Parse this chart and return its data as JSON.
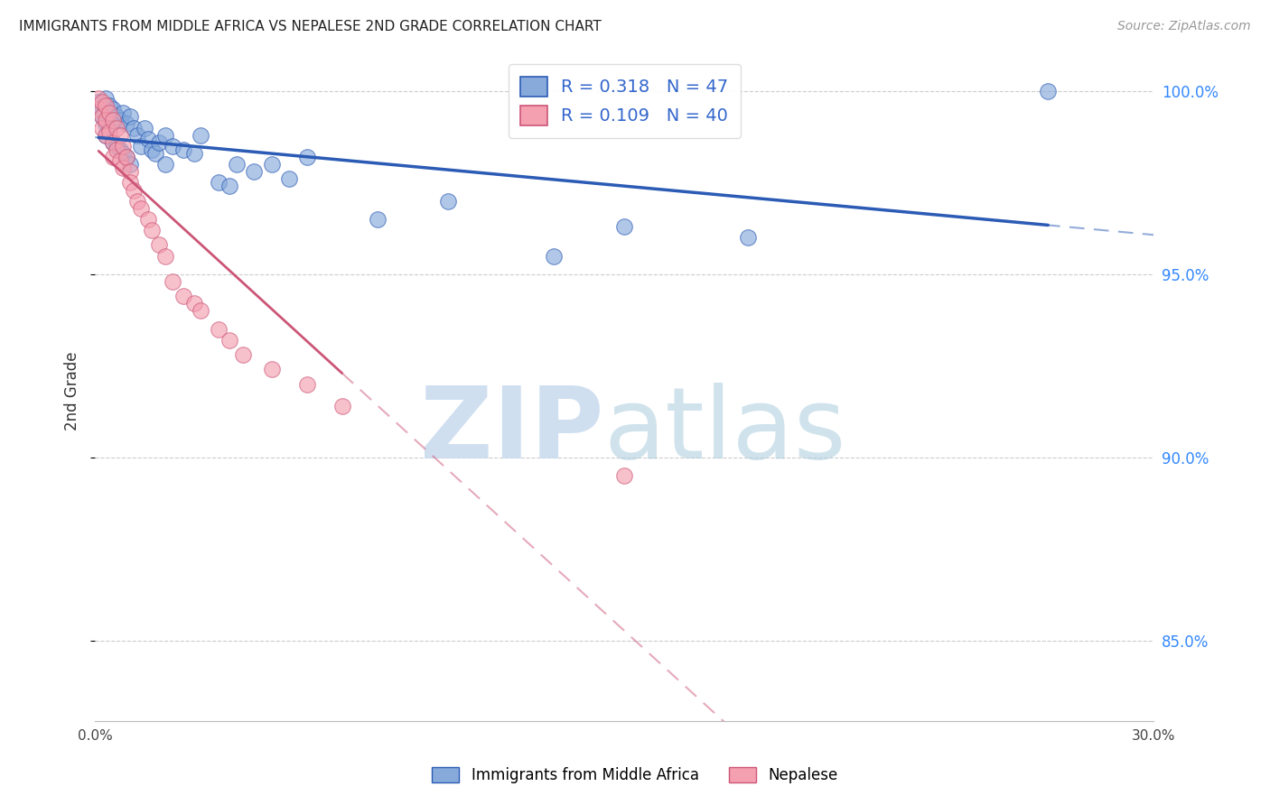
{
  "title": "IMMIGRANTS FROM MIDDLE AFRICA VS NEPALESE 2ND GRADE CORRELATION CHART",
  "source_text": "Source: ZipAtlas.com",
  "ylabel": "2nd Grade",
  "xlim": [
    0.0,
    0.3
  ],
  "ylim": [
    0.828,
    1.008
  ],
  "x_ticks": [
    0.0,
    0.05,
    0.1,
    0.15,
    0.2,
    0.25,
    0.3
  ],
  "x_tick_labels": [
    "0.0%",
    "",
    "",
    "",
    "",
    "",
    "30.0%"
  ],
  "y_ticks": [
    0.85,
    0.9,
    0.95,
    1.0
  ],
  "y_tick_labels": [
    "85.0%",
    "90.0%",
    "95.0%",
    "100.0%"
  ],
  "blue_color": "#87AADB",
  "pink_color": "#F4A0B0",
  "blue_line_color": "#2B5BB5",
  "pink_line_color": "#CC5577",
  "legend_R_blue": "0.318",
  "legend_N_blue": "47",
  "legend_R_pink": "0.109",
  "legend_N_pink": "40",
  "blue_scatter_x": [
    0.001,
    0.002,
    0.002,
    0.003,
    0.003,
    0.003,
    0.004,
    0.004,
    0.005,
    0.005,
    0.006,
    0.006,
    0.007,
    0.007,
    0.008,
    0.008,
    0.009,
    0.009,
    0.01,
    0.01,
    0.011,
    0.012,
    0.013,
    0.014,
    0.015,
    0.016,
    0.017,
    0.018,
    0.02,
    0.02,
    0.022,
    0.025,
    0.028,
    0.03,
    0.035,
    0.038,
    0.04,
    0.045,
    0.05,
    0.055,
    0.06,
    0.08,
    0.1,
    0.13,
    0.15,
    0.185,
    0.27
  ],
  "blue_scatter_y": [
    0.997,
    0.995,
    0.993,
    0.998,
    0.991,
    0.988,
    0.996,
    0.99,
    0.995,
    0.986,
    0.993,
    0.985,
    0.992,
    0.984,
    0.994,
    0.983,
    0.991,
    0.982,
    0.993,
    0.98,
    0.99,
    0.988,
    0.985,
    0.99,
    0.987,
    0.984,
    0.983,
    0.986,
    0.988,
    0.98,
    0.985,
    0.984,
    0.983,
    0.988,
    0.975,
    0.974,
    0.98,
    0.978,
    0.98,
    0.976,
    0.982,
    0.965,
    0.97,
    0.955,
    0.963,
    0.96,
    1.0
  ],
  "pink_scatter_x": [
    0.001,
    0.001,
    0.002,
    0.002,
    0.002,
    0.003,
    0.003,
    0.003,
    0.004,
    0.004,
    0.005,
    0.005,
    0.005,
    0.006,
    0.006,
    0.007,
    0.007,
    0.008,
    0.008,
    0.009,
    0.01,
    0.01,
    0.011,
    0.012,
    0.013,
    0.015,
    0.016,
    0.018,
    0.02,
    0.022,
    0.025,
    0.028,
    0.03,
    0.035,
    0.038,
    0.042,
    0.05,
    0.06,
    0.07,
    0.15
  ],
  "pink_scatter_y": [
    0.998,
    0.995,
    0.997,
    0.993,
    0.99,
    0.996,
    0.992,
    0.988,
    0.994,
    0.989,
    0.992,
    0.986,
    0.982,
    0.99,
    0.984,
    0.988,
    0.981,
    0.985,
    0.979,
    0.982,
    0.978,
    0.975,
    0.973,
    0.97,
    0.968,
    0.965,
    0.962,
    0.958,
    0.955,
    0.948,
    0.944,
    0.942,
    0.94,
    0.935,
    0.932,
    0.928,
    0.924,
    0.92,
    0.914,
    0.895
  ]
}
